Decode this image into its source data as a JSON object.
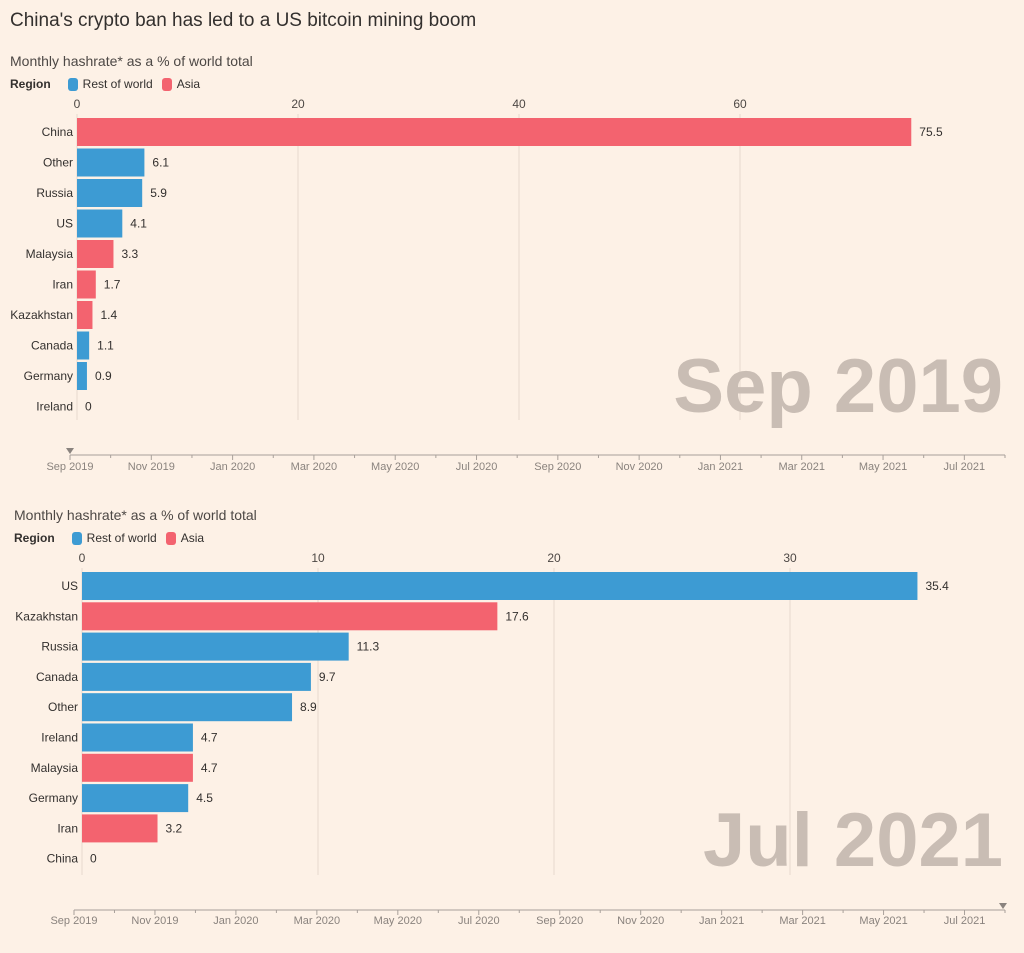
{
  "title": "China's crypto ban has led to a US bitcoin mining boom",
  "colors": {
    "background": "#fdf1e6",
    "Rest of world": "#3d9bd3",
    "Asia": "#f3636f",
    "big_date": "#c9bdb4",
    "grid": "#e6d9ce"
  },
  "timeline": {
    "labels": [
      "Sep 2019",
      "Nov 2019",
      "Jan 2020",
      "Mar 2020",
      "May 2020",
      "Jul 2020",
      "Sep 2020",
      "Nov 2020",
      "Jan 2021",
      "Mar 2021",
      "May 2021",
      "Jul 2021"
    ]
  },
  "chart_data": [
    {
      "type": "bar",
      "orientation": "horizontal",
      "subtitle": "Monthly hashrate* as a % of world total",
      "legend_title": "Region",
      "legend": [
        "Rest of world",
        "Asia"
      ],
      "date": "Sep 2019",
      "xticks": [
        0,
        20,
        40,
        60
      ],
      "xlim": [
        0,
        75.5
      ],
      "grid": true,
      "categories": [
        "China",
        "Other",
        "Russia",
        "US",
        "Malaysia",
        "Iran",
        "Kazakhstan",
        "Canada",
        "Germany",
        "Ireland"
      ],
      "values": [
        75.5,
        6.1,
        5.9,
        4.1,
        3.3,
        1.7,
        1.4,
        1.1,
        0.9,
        0
      ],
      "regions": [
        "Asia",
        "Rest of world",
        "Rest of world",
        "Rest of world",
        "Asia",
        "Asia",
        "Asia",
        "Rest of world",
        "Rest of world",
        "Rest of world"
      ],
      "timeline_position": "Sep 2019"
    },
    {
      "type": "bar",
      "orientation": "horizontal",
      "subtitle": "Monthly hashrate* as a % of world total",
      "legend_title": "Region",
      "legend": [
        "Rest of world",
        "Asia"
      ],
      "date": "Jul 2021",
      "xticks": [
        0,
        10,
        20,
        30
      ],
      "xlim": [
        0,
        35.4
      ],
      "grid": true,
      "categories": [
        "US",
        "Kazakhstan",
        "Russia",
        "Canada",
        "Other",
        "Ireland",
        "Malaysia",
        "Germany",
        "Iran",
        "China"
      ],
      "values": [
        35.4,
        17.6,
        11.3,
        9.7,
        8.9,
        4.7,
        4.7,
        4.5,
        3.2,
        0
      ],
      "regions": [
        "Rest of world",
        "Asia",
        "Rest of world",
        "Rest of world",
        "Rest of world",
        "Rest of world",
        "Asia",
        "Rest of world",
        "Asia",
        "Asia"
      ],
      "timeline_position": "Jul 2021"
    }
  ]
}
